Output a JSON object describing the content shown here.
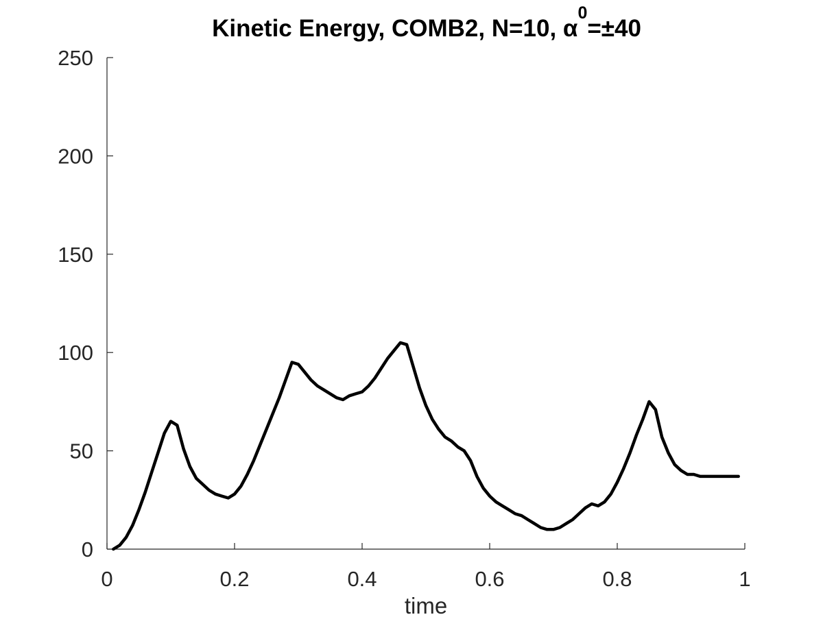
{
  "chart_data": {
    "type": "line",
    "title": {
      "main": "Kinetic Energy, COMB2, N=10, α",
      "superscript": "0",
      "suffix": "=±40"
    },
    "xlabel": "time",
    "ylabel": "",
    "xlim": [
      0,
      1
    ],
    "ylim": [
      0,
      250
    ],
    "x_ticks": [
      0,
      0.2,
      0.4,
      0.6,
      0.8,
      1
    ],
    "x_tick_labels": [
      "0",
      "0.2",
      "0.4",
      "0.6",
      "0.8",
      "1"
    ],
    "y_ticks": [
      0,
      50,
      100,
      150,
      200,
      250
    ],
    "y_tick_labels": [
      "0",
      "50",
      "100",
      "150",
      "200",
      "250"
    ],
    "grid": false,
    "line_color": "#000000",
    "series": [
      {
        "x": [
          0.01,
          0.02,
          0.03,
          0.04,
          0.05,
          0.06,
          0.07,
          0.08,
          0.09,
          0.1,
          0.11,
          0.12,
          0.13,
          0.14,
          0.15,
          0.16,
          0.17,
          0.18,
          0.19,
          0.2,
          0.21,
          0.22,
          0.23,
          0.24,
          0.25,
          0.26,
          0.27,
          0.28,
          0.29,
          0.3,
          0.31,
          0.32,
          0.33,
          0.34,
          0.35,
          0.36,
          0.37,
          0.38,
          0.39,
          0.4,
          0.41,
          0.42,
          0.43,
          0.44,
          0.45,
          0.46,
          0.47,
          0.48,
          0.49,
          0.5,
          0.51,
          0.52,
          0.53,
          0.54,
          0.55,
          0.56,
          0.57,
          0.58,
          0.59,
          0.6,
          0.61,
          0.62,
          0.63,
          0.64,
          0.65,
          0.66,
          0.67,
          0.68,
          0.69,
          0.7,
          0.71,
          0.72,
          0.73,
          0.74,
          0.75,
          0.76,
          0.77,
          0.78,
          0.79,
          0.8,
          0.81,
          0.82,
          0.83,
          0.84,
          0.85,
          0.86,
          0.87,
          0.88,
          0.89,
          0.9,
          0.91,
          0.92,
          0.93,
          0.94,
          0.95,
          0.96,
          0.97,
          0.98,
          0.99
        ],
        "y": [
          0,
          2,
          6,
          12,
          20,
          29,
          39,
          49,
          59,
          65,
          63,
          51,
          42,
          36,
          33,
          30,
          28,
          27,
          26,
          28,
          32,
          38,
          45,
          53,
          61,
          69,
          77,
          86,
          95,
          94,
          90,
          86,
          83,
          81,
          79,
          77,
          76,
          78,
          79,
          80,
          83,
          87,
          92,
          97,
          101,
          105,
          104,
          93,
          82,
          73,
          66,
          61,
          57,
          55,
          52,
          50,
          45,
          37,
          31,
          27,
          24,
          22,
          20,
          18,
          17,
          15,
          13,
          11,
          10,
          10,
          11,
          13,
          15,
          18,
          21,
          23,
          22,
          24,
          28,
          34,
          41,
          49,
          58,
          66,
          75,
          71,
          57,
          49,
          43,
          40,
          38,
          38,
          37,
          37,
          37,
          37,
          37,
          37,
          37
        ]
      }
    ]
  }
}
